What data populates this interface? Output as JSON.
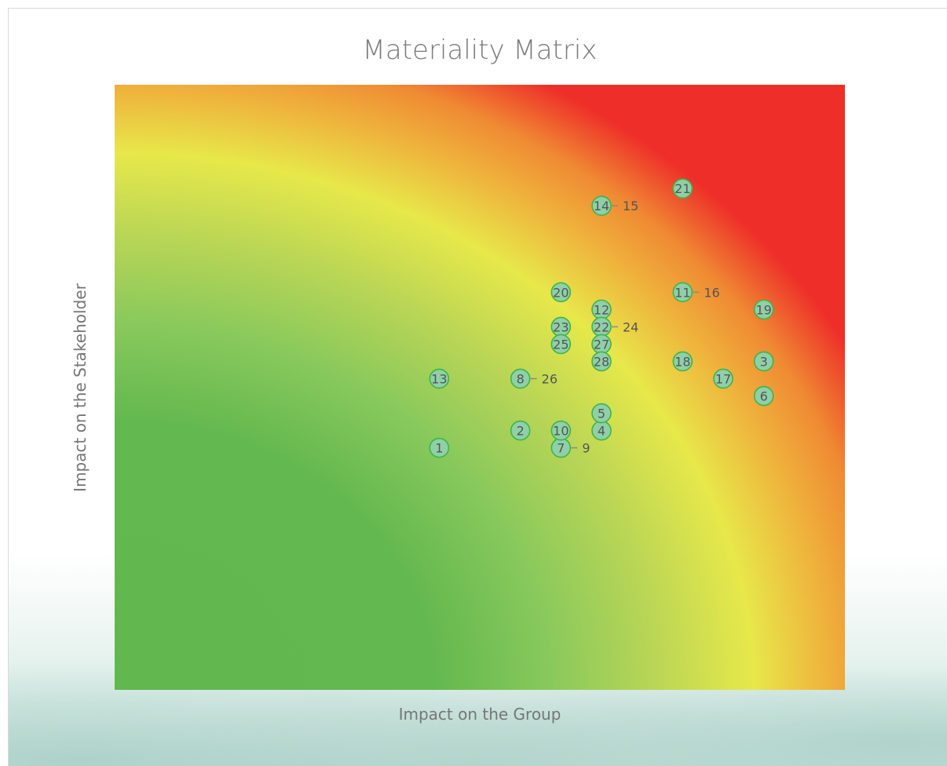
{
  "chart_data": {
    "type": "scatter",
    "title": "Materiality Matrix",
    "xlabel": "Impact on the Group",
    "ylabel": "Impact on the Stakeholder",
    "xlim": [
      0,
      18
    ],
    "ylim": [
      0,
      35
    ],
    "grid": false,
    "legend": "none",
    "colors": {
      "marker_fill": "#8fd0a8",
      "marker_stroke": "#3db54a",
      "label": "#555555",
      "leader": "#8a8a8a",
      "gradient_low": "#62b74f",
      "gradient_mid": "#e7e84a",
      "gradient_high": "#ee2e29"
    },
    "points": [
      {
        "id": "1",
        "x": 8,
        "y": 14
      },
      {
        "id": "2",
        "x": 10,
        "y": 15
      },
      {
        "id": "3",
        "x": 16,
        "y": 19
      },
      {
        "id": "4",
        "x": 12,
        "y": 15
      },
      {
        "id": "5",
        "x": 12,
        "y": 16
      },
      {
        "id": "6",
        "x": 16,
        "y": 17
      },
      {
        "id": "7",
        "x": 11,
        "y": 14
      },
      {
        "id": "8",
        "x": 10,
        "y": 18
      },
      {
        "id": "9",
        "x": 11,
        "y": 14,
        "label_offset": "right"
      },
      {
        "id": "10",
        "x": 11,
        "y": 15
      },
      {
        "id": "11",
        "x": 14,
        "y": 23
      },
      {
        "id": "12",
        "x": 12,
        "y": 22
      },
      {
        "id": "13",
        "x": 8,
        "y": 18
      },
      {
        "id": "14",
        "x": 12,
        "y": 28
      },
      {
        "id": "15",
        "x": 12,
        "y": 28,
        "label_offset": "right"
      },
      {
        "id": "16",
        "x": 14,
        "y": 23,
        "label_offset": "right"
      },
      {
        "id": "17",
        "x": 15,
        "y": 18
      },
      {
        "id": "18",
        "x": 14,
        "y": 19
      },
      {
        "id": "19",
        "x": 16,
        "y": 22
      },
      {
        "id": "20",
        "x": 11,
        "y": 23
      },
      {
        "id": "21",
        "x": 14,
        "y": 29
      },
      {
        "id": "22",
        "x": 12,
        "y": 21
      },
      {
        "id": "23",
        "x": 11,
        "y": 21
      },
      {
        "id": "24",
        "x": 12,
        "y": 21,
        "label_offset": "right"
      },
      {
        "id": "25",
        "x": 11,
        "y": 20
      },
      {
        "id": "26",
        "x": 10,
        "y": 18,
        "label_offset": "right"
      },
      {
        "id": "27",
        "x": 12,
        "y": 20
      },
      {
        "id": "28",
        "x": 12,
        "y": 19
      }
    ]
  }
}
